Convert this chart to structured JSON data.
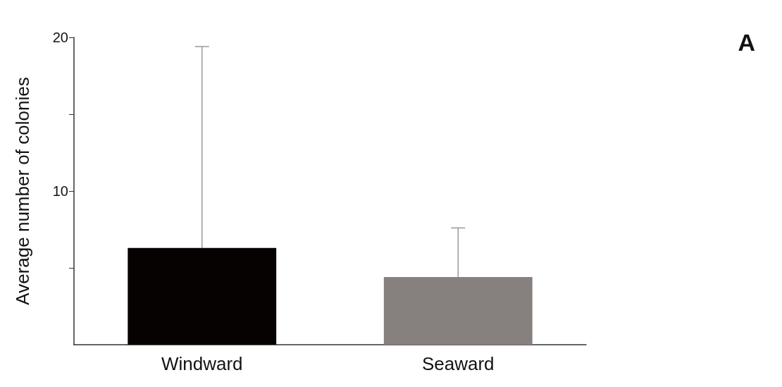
{
  "chart_data": {
    "type": "bar",
    "ylabel": "Average number of colonies",
    "categories": [
      "Windward",
      "Seaward"
    ],
    "values": [
      6.3,
      4.4
    ],
    "colors": [
      "#070202",
      "#86817e"
    ],
    "errors": [
      [
        6.3,
        19.4
      ],
      [
        4.4,
        7.6
      ]
    ],
    "ylim": [
      0,
      20
    ],
    "yticks": [
      {
        "value": 5,
        "label": null
      },
      10,
      {
        "value": 15,
        "label": null
      },
      20
    ],
    "grid": false,
    "annotations": [
      "A"
    ]
  }
}
